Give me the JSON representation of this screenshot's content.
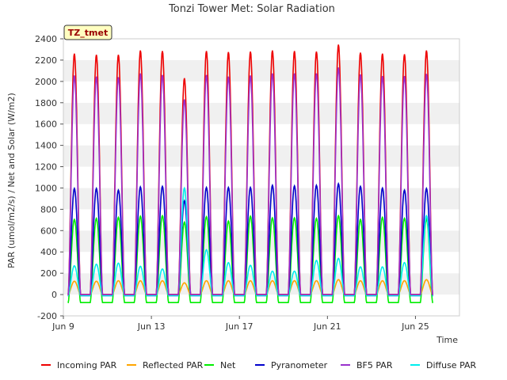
{
  "chart_data": {
    "type": "line",
    "title": "Tonzi Tower Met: Solar Radiation",
    "xlabel": "Time",
    "ylabel": "PAR (umol/m2/s) / Net and Solar (W/m2)",
    "badge": "TZ_tmet",
    "ylim": [
      -200,
      2400
    ],
    "yticks": [
      -200,
      0,
      200,
      400,
      600,
      800,
      1000,
      1200,
      1400,
      1600,
      1800,
      2000,
      2200,
      2400
    ],
    "xlim": [
      9.0,
      27.0
    ],
    "xticks": [
      {
        "value": 9,
        "label": "Jun 9"
      },
      {
        "value": 13,
        "label": "Jun 13"
      },
      {
        "value": 17,
        "label": "Jun 17"
      },
      {
        "value": 21,
        "label": "Jun 21"
      },
      {
        "value": 25,
        "label": "Jun 25"
      }
    ],
    "grid": "horizontal bands",
    "legend_position": "bottom",
    "days": [
      9.5,
      10.5,
      11.5,
      12.5,
      13.5,
      14.5,
      15.5,
      16.5,
      17.5,
      18.5,
      19.5,
      20.5,
      21.5,
      22.5,
      23.5,
      24.5,
      25.5
    ],
    "series": [
      {
        "name": "Incoming PAR",
        "color": "#ee0000",
        "night": 0,
        "daily_peaks": [
          2260,
          2250,
          2250,
          2290,
          2285,
          2030,
          2285,
          2275,
          2280,
          2290,
          2285,
          2280,
          2345,
          2270,
          2260,
          2255,
          2290
        ]
      },
      {
        "name": "Reflected PAR",
        "color": "#ffa500",
        "night": 0,
        "daily_peaks": [
          125,
          125,
          130,
          130,
          130,
          110,
          130,
          130,
          130,
          130,
          130,
          130,
          140,
          130,
          130,
          130,
          140
        ]
      },
      {
        "name": "Net",
        "color": "#00ee00",
        "night": -75,
        "daily_peaks": [
          705,
          715,
          725,
          735,
          740,
          680,
          730,
          690,
          735,
          720,
          720,
          715,
          740,
          705,
          725,
          715,
          710
        ]
      },
      {
        "name": "Pyranometer",
        "color": "#0000cc",
        "night": -10,
        "daily_peaks": [
          995,
          995,
          980,
          1010,
          1015,
          880,
          1005,
          1005,
          1005,
          1025,
          1020,
          1025,
          1040,
          1015,
          1000,
          980,
          995
        ]
      },
      {
        "name": "BF5 PAR",
        "color": "#9932cc",
        "night": 0,
        "daily_peaks": [
          2055,
          2045,
          2040,
          2075,
          2060,
          1830,
          2060,
          2045,
          2055,
          2075,
          2075,
          2075,
          2130,
          2065,
          2050,
          2050,
          2070
        ]
      },
      {
        "name": "Diffuse PAR",
        "color": "#00eeee",
        "night": -10,
        "daily_peaks": [
          270,
          285,
          295,
          265,
          240,
          1000,
          420,
          300,
          275,
          220,
          220,
          320,
          340,
          260,
          260,
          300,
          740
        ]
      }
    ]
  }
}
